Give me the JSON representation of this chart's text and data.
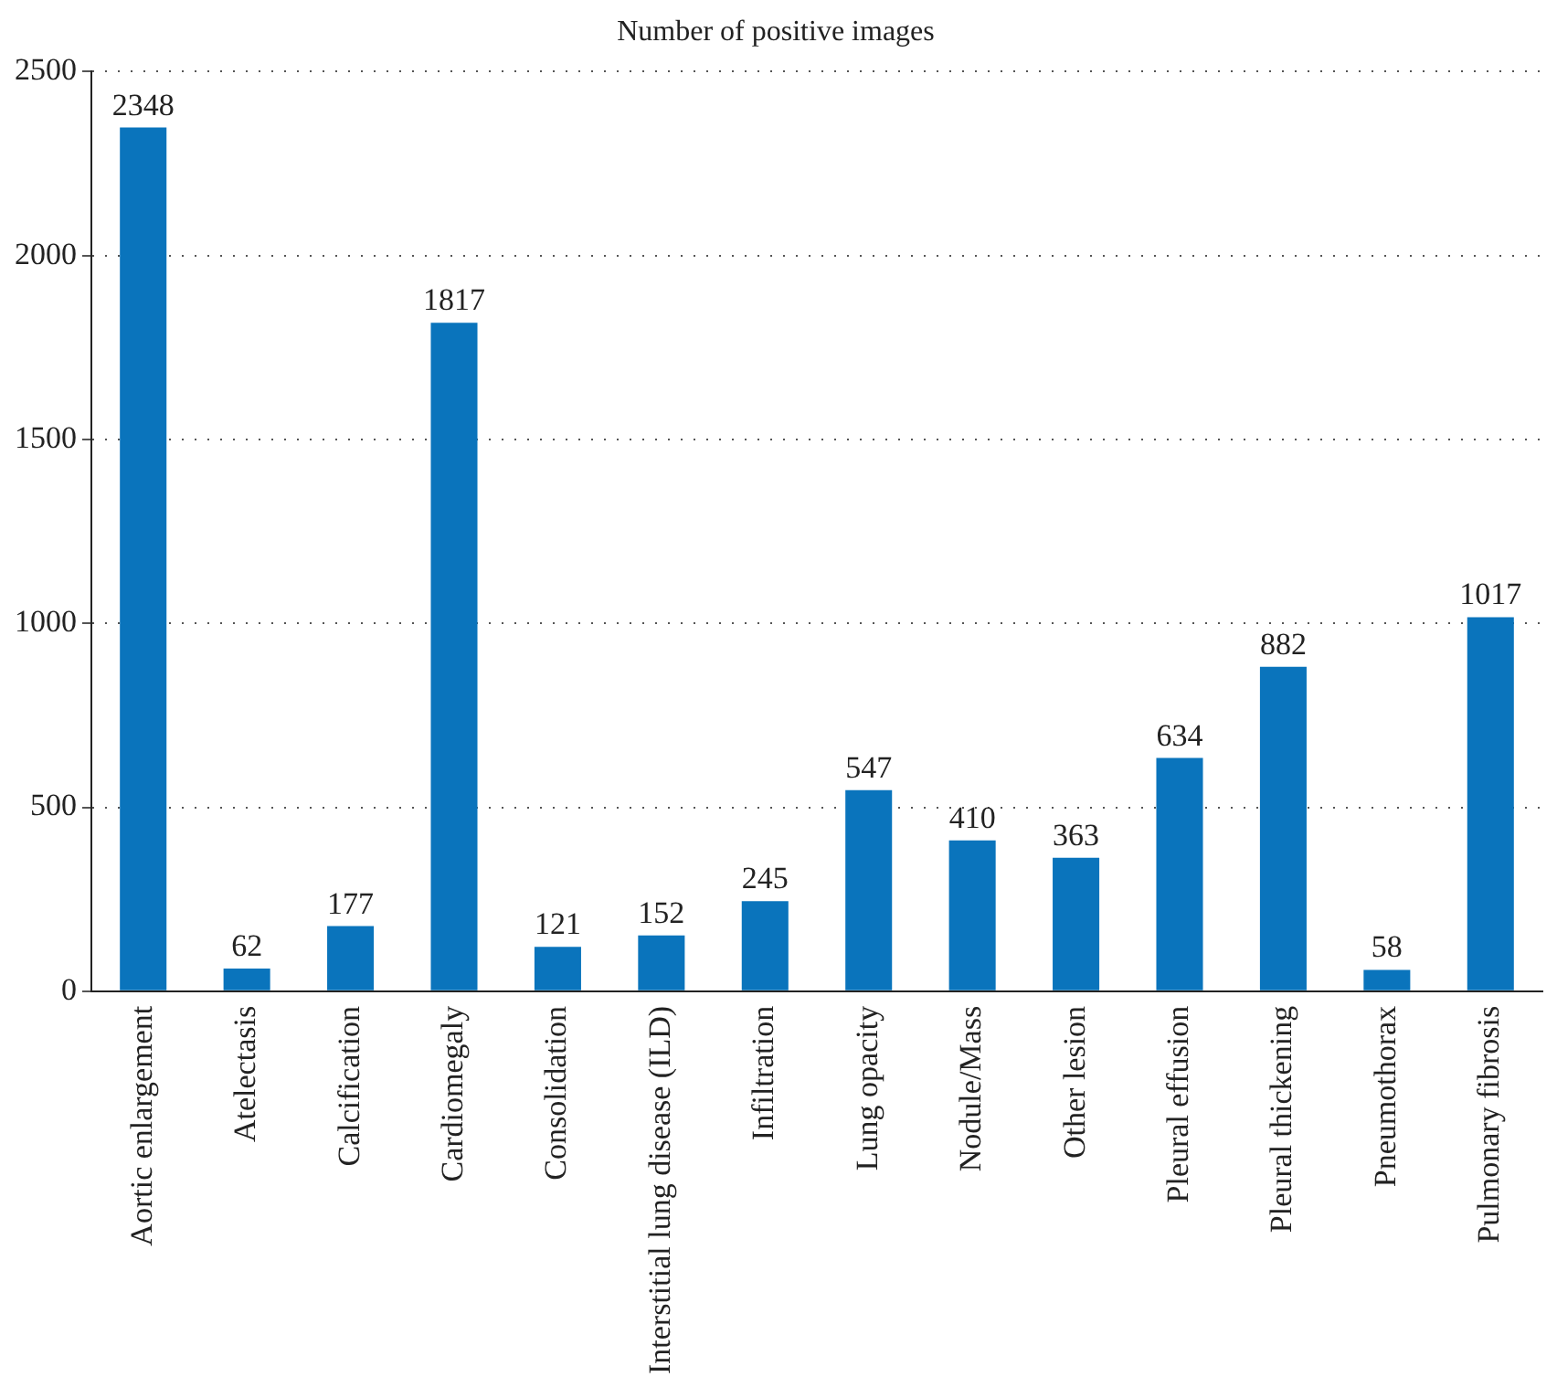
{
  "chart_data": {
    "type": "bar",
    "title": "Number of positive images",
    "categories": [
      "Aortic enlargement",
      "Atelectasis",
      "Calcification",
      "Cardiomegaly",
      "Consolidation",
      "Interstitial lung disease (ILD)",
      "Infiltration",
      "Lung opacity",
      "Nodule/Mass",
      "Other lesion",
      "Pleural effusion",
      "Pleural thickening",
      "Pneumothorax",
      "Pulmonary fibrosis"
    ],
    "values": [
      2348,
      62,
      177,
      1817,
      121,
      152,
      245,
      547,
      410,
      363,
      634,
      882,
      58,
      1017
    ],
    "color": "#0a74bc",
    "ylim": [
      0,
      2500
    ],
    "yticks": [
      0,
      500,
      1000,
      1500,
      2000,
      2500
    ],
    "grid": "y",
    "data_labels": true,
    "legend": false
  }
}
